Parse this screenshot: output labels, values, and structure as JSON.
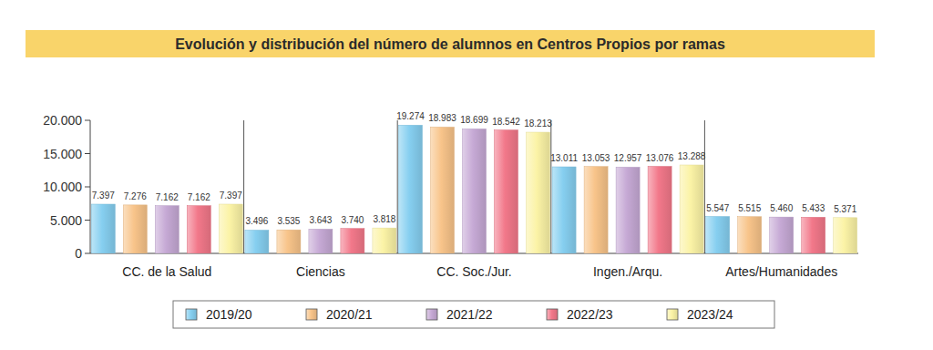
{
  "chart_data": {
    "type": "bar",
    "title": "Evolución y distribución del número de alumnos en Centros Propios por ramas",
    "categories": [
      "CC. de la Salud",
      "Ciencias",
      "CC. Soc./Jur.",
      "Ingen./Arqu.",
      "Artes/Humanidades"
    ],
    "series": [
      {
        "name": "2019/20",
        "color": "#86cff0",
        "values": [
          7397,
          3496,
          19274,
          13011,
          5547
        ],
        "value_labels": [
          "7.397",
          "3.496",
          "19.274",
          "13.011",
          "5.547"
        ]
      },
      {
        "name": "2020/21",
        "color": "#f8c48a",
        "values": [
          7276,
          3535,
          18983,
          13053,
          5515
        ],
        "value_labels": [
          "7.276",
          "3.535",
          "18.983",
          "13.053",
          "5.515"
        ]
      },
      {
        "name": "2021/22",
        "color": "#c6a9d5",
        "values": [
          7162,
          3643,
          18699,
          12957,
          5460
        ],
        "value_labels": [
          "7.162",
          "3.643",
          "18.699",
          "12.957",
          "5.460"
        ]
      },
      {
        "name": "2022/23",
        "color": "#f2788a",
        "values": [
          7162,
          3740,
          18542,
          13076,
          5433
        ],
        "value_labels": [
          "7.162",
          "3.740",
          "18.542",
          "13.076",
          "5.433"
        ]
      },
      {
        "name": "2023/24",
        "color": "#fbf3a6",
        "values": [
          7397,
          3818,
          18213,
          13288,
          5371
        ],
        "value_labels": [
          "7.397",
          "3.818",
          "18.213",
          "13.288",
          "5.371"
        ]
      }
    ],
    "ylim": [
      0,
      20000
    ],
    "yticks": [
      0,
      {
        "value": 5000,
        "label": "5.000"
      },
      {
        "value": 10000,
        "label": "10.000"
      },
      {
        "value": 15000,
        "label": "15.000"
      },
      {
        "value": 20000,
        "label": "20.000"
      }
    ],
    "grid": false,
    "legend": "bottom",
    "data_labels": true
  }
}
